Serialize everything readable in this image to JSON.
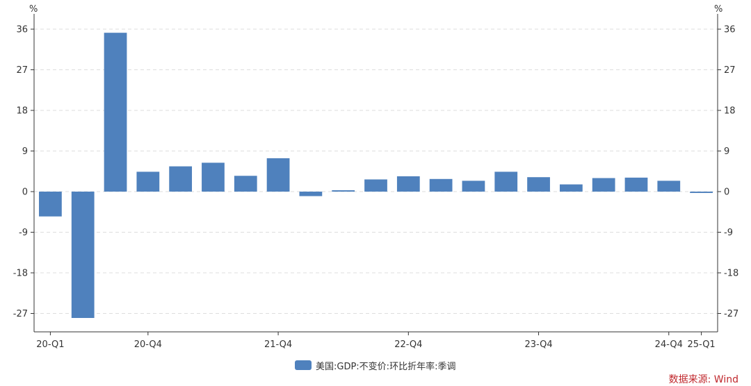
{
  "chart_data": {
    "type": "bar",
    "y_unit_left": "%",
    "y_unit_right": "%",
    "categories": [
      "20-Q1",
      "20-Q2",
      "20-Q3",
      "20-Q4",
      "21-Q1",
      "21-Q2",
      "21-Q3",
      "21-Q4",
      "22-Q1",
      "22-Q2",
      "22-Q3",
      "22-Q4",
      "23-Q1",
      "23-Q2",
      "23-Q3",
      "23-Q4",
      "24-Q1",
      "24-Q2",
      "24-Q3",
      "24-Q4",
      "25-Q1"
    ],
    "x_tick_labels": [
      "20-Q1",
      "20-Q4",
      "21-Q4",
      "22-Q4",
      "23-Q4",
      "24-Q4",
      "25-Q1"
    ],
    "series": [
      {
        "name": "美国:GDP:不变价:环比折年率:季调",
        "values": [
          -5.5,
          -28.0,
          35.2,
          4.4,
          5.6,
          6.4,
          3.5,
          7.4,
          -1.0,
          0.3,
          2.7,
          3.4,
          2.8,
          2.4,
          4.4,
          3.2,
          1.6,
          3.0,
          3.1,
          2.4,
          -0.3
        ]
      }
    ],
    "ylim": [
      -31,
      36
    ],
    "y_ticks": [
      36,
      27,
      18,
      9,
      0,
      -9,
      -18,
      -27
    ],
    "grid": true,
    "legend_position": "bottom-center",
    "colors": {
      "bar": "#4f81bd",
      "axis": "#333333",
      "grid": "#dddddd"
    }
  },
  "source_text": "数据来源: Wind",
  "source_color": "#c0282d"
}
